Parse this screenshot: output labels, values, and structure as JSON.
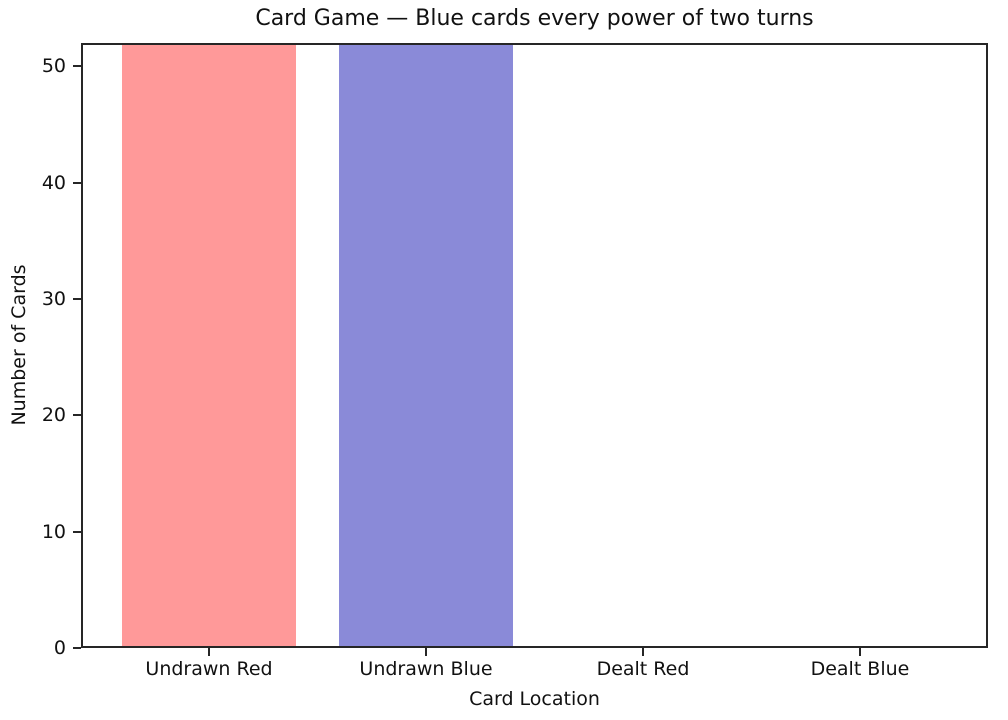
{
  "figure": {
    "background": "#ffffff",
    "spine_color": "#262626",
    "text_color": "#111111"
  },
  "chart_data": {
    "type": "bar",
    "title": "Card Game — Blue cards every power of two turns",
    "xlabel": "Card Location",
    "ylabel": "Number of Cards",
    "categories": [
      "Undrawn Red",
      "Undrawn Blue",
      "Dealt Red",
      "Dealt Blue"
    ],
    "values": [
      52,
      52,
      0,
      0
    ],
    "bar_colors": [
      "#ff9999",
      "#8a8ad8",
      "#ff9999",
      "#8a8ad8"
    ],
    "yticks": [
      0,
      10,
      20,
      30,
      40,
      50
    ],
    "ylim": [
      0,
      52
    ],
    "bar_width_fraction": 0.8,
    "grid": false,
    "legend": null
  }
}
